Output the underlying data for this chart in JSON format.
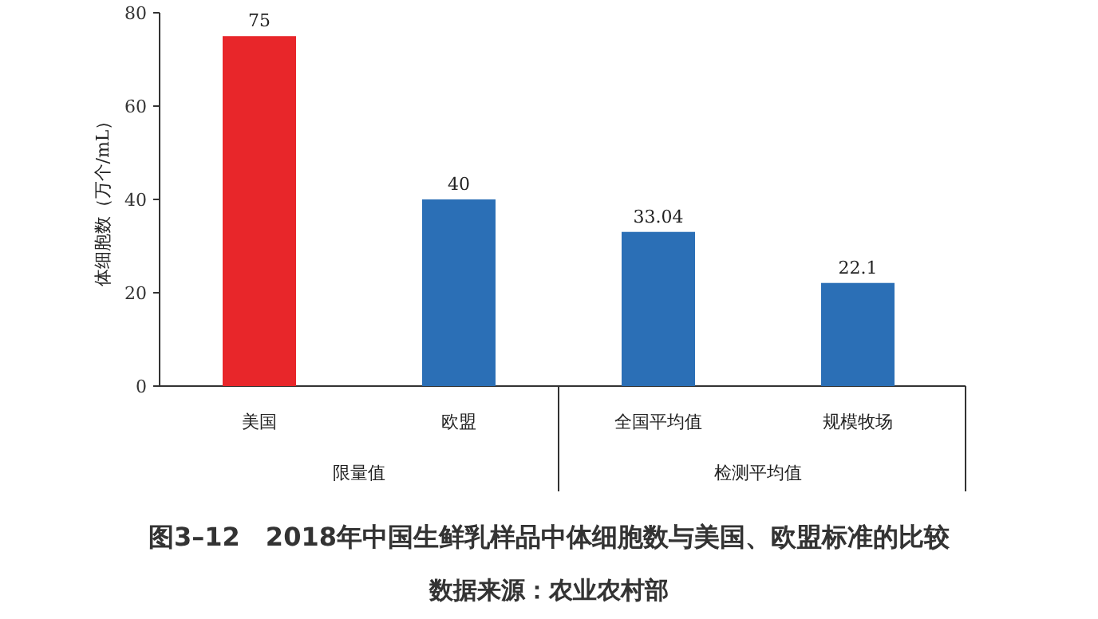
{
  "chart_data": {
    "type": "bar",
    "title": "图3–12　2018年中国生鲜乳样品中体细胞数与美国、欧盟标准的比较",
    "ylabel": "体细胞数（万个/mL）",
    "categories": [
      "美国",
      "欧盟",
      "全国平均值",
      "规模牧场"
    ],
    "values": [
      75,
      40,
      33.04,
      22.1
    ],
    "colors": [
      "#e8262a",
      "#2b6fb6",
      "#2b6fb6",
      "#2b6fb6"
    ],
    "ylim": [
      0,
      80
    ],
    "yticks": [
      0,
      20,
      40,
      60,
      80
    ],
    "data_labels": true,
    "grid": false,
    "annotations": [
      "限量值",
      "检测平均值",
      "数据来源：农业农村部"
    ]
  }
}
